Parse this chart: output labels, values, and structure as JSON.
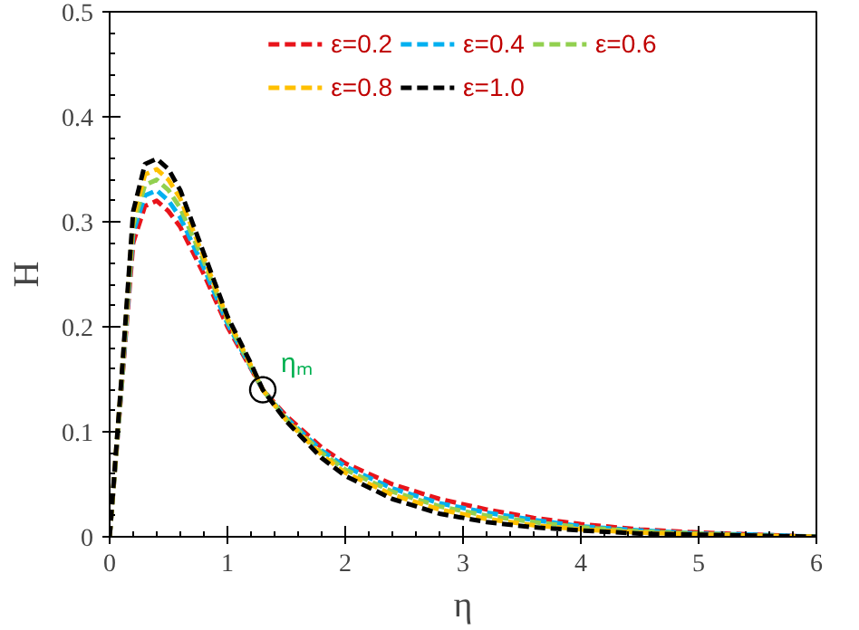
{
  "chart_data": {
    "type": "line",
    "xlabel": "η",
    "ylabel": "H",
    "x": [
      0,
      0.1,
      0.2,
      0.3,
      0.4,
      0.5,
      0.6,
      0.8,
      1.0,
      1.2,
      1.3,
      1.5,
      1.8,
      2.0,
      2.4,
      2.8,
      3.2,
      3.6,
      4.0,
      4.5,
      5.0,
      5.5,
      6.0
    ],
    "series": [
      {
        "name": "ε=0.2",
        "color": "#e8141b",
        "values": [
          0,
          0.14,
          0.28,
          0.315,
          0.32,
          0.31,
          0.295,
          0.25,
          0.2,
          0.16,
          0.14,
          0.115,
          0.085,
          0.07,
          0.05,
          0.036,
          0.026,
          0.018,
          0.012,
          0.007,
          0.004,
          0.002,
          0
        ]
      },
      {
        "name": "ε=0.4",
        "color": "#00b0f0",
        "values": [
          0,
          0.142,
          0.29,
          0.325,
          0.33,
          0.32,
          0.304,
          0.256,
          0.203,
          0.161,
          0.14,
          0.113,
          0.082,
          0.067,
          0.046,
          0.032,
          0.023,
          0.016,
          0.01,
          0.006,
          0.003,
          0.002,
          0
        ]
      },
      {
        "name": "ε=0.6",
        "color": "#92d050",
        "values": [
          0,
          0.145,
          0.297,
          0.335,
          0.34,
          0.33,
          0.313,
          0.262,
          0.206,
          0.162,
          0.14,
          0.112,
          0.08,
          0.064,
          0.043,
          0.029,
          0.02,
          0.014,
          0.009,
          0.005,
          0.003,
          0.001,
          0
        ]
      },
      {
        "name": "ε=0.8",
        "color": "#ffc000",
        "values": [
          0,
          0.148,
          0.303,
          0.345,
          0.35,
          0.34,
          0.322,
          0.266,
          0.208,
          0.163,
          0.14,
          0.111,
          0.078,
          0.061,
          0.04,
          0.026,
          0.017,
          0.011,
          0.007,
          0.004,
          0.002,
          0.001,
          0
        ]
      },
      {
        "name": "ε=1.0",
        "color": "#000000",
        "values": [
          0,
          0.15,
          0.31,
          0.355,
          0.36,
          0.35,
          0.33,
          0.27,
          0.21,
          0.165,
          0.14,
          0.11,
          0.075,
          0.058,
          0.036,
          0.022,
          0.014,
          0.009,
          0.006,
          0.003,
          0.002,
          0.001,
          0
        ]
      }
    ],
    "xlim": [
      0,
      6
    ],
    "ylim": [
      0,
      0.5
    ],
    "xticks": [
      0,
      1,
      2,
      3,
      4,
      5,
      6
    ],
    "yticks": [
      0,
      0.1,
      0.2,
      0.3,
      0.4,
      0.5
    ],
    "grid": false,
    "legend": "top",
    "line_style": "dashed",
    "marker": "none",
    "annotations": [
      {
        "text": "ηₘ",
        "x": 1.3,
        "y": 0.14
      }
    ]
  }
}
